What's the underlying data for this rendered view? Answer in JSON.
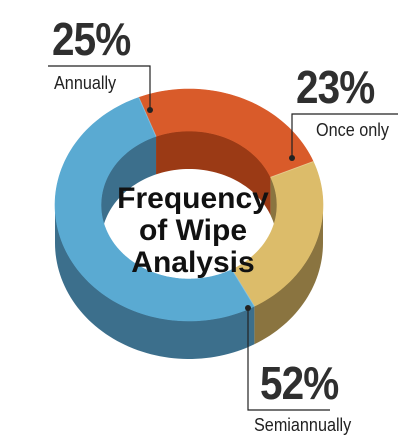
{
  "chart_data": {
    "type": "pie",
    "title": "Frequency of Wipe Analysis",
    "title_lines": [
      "Frequency",
      "of Wipe",
      "Analysis"
    ],
    "style": "3d-donut",
    "slices": [
      {
        "category": "Annually",
        "value": 25,
        "label": "25%",
        "color": "#d95b2a",
        "side_color": "#9b3a15"
      },
      {
        "category": "Once only",
        "value": 23,
        "label": "23%",
        "color": "#dcbc6a",
        "side_color": "#8a7440"
      },
      {
        "category": "Semiannually",
        "value": 52,
        "label": "52%",
        "color": "#5aaad2",
        "side_color": "#3c6f8c"
      }
    ]
  }
}
